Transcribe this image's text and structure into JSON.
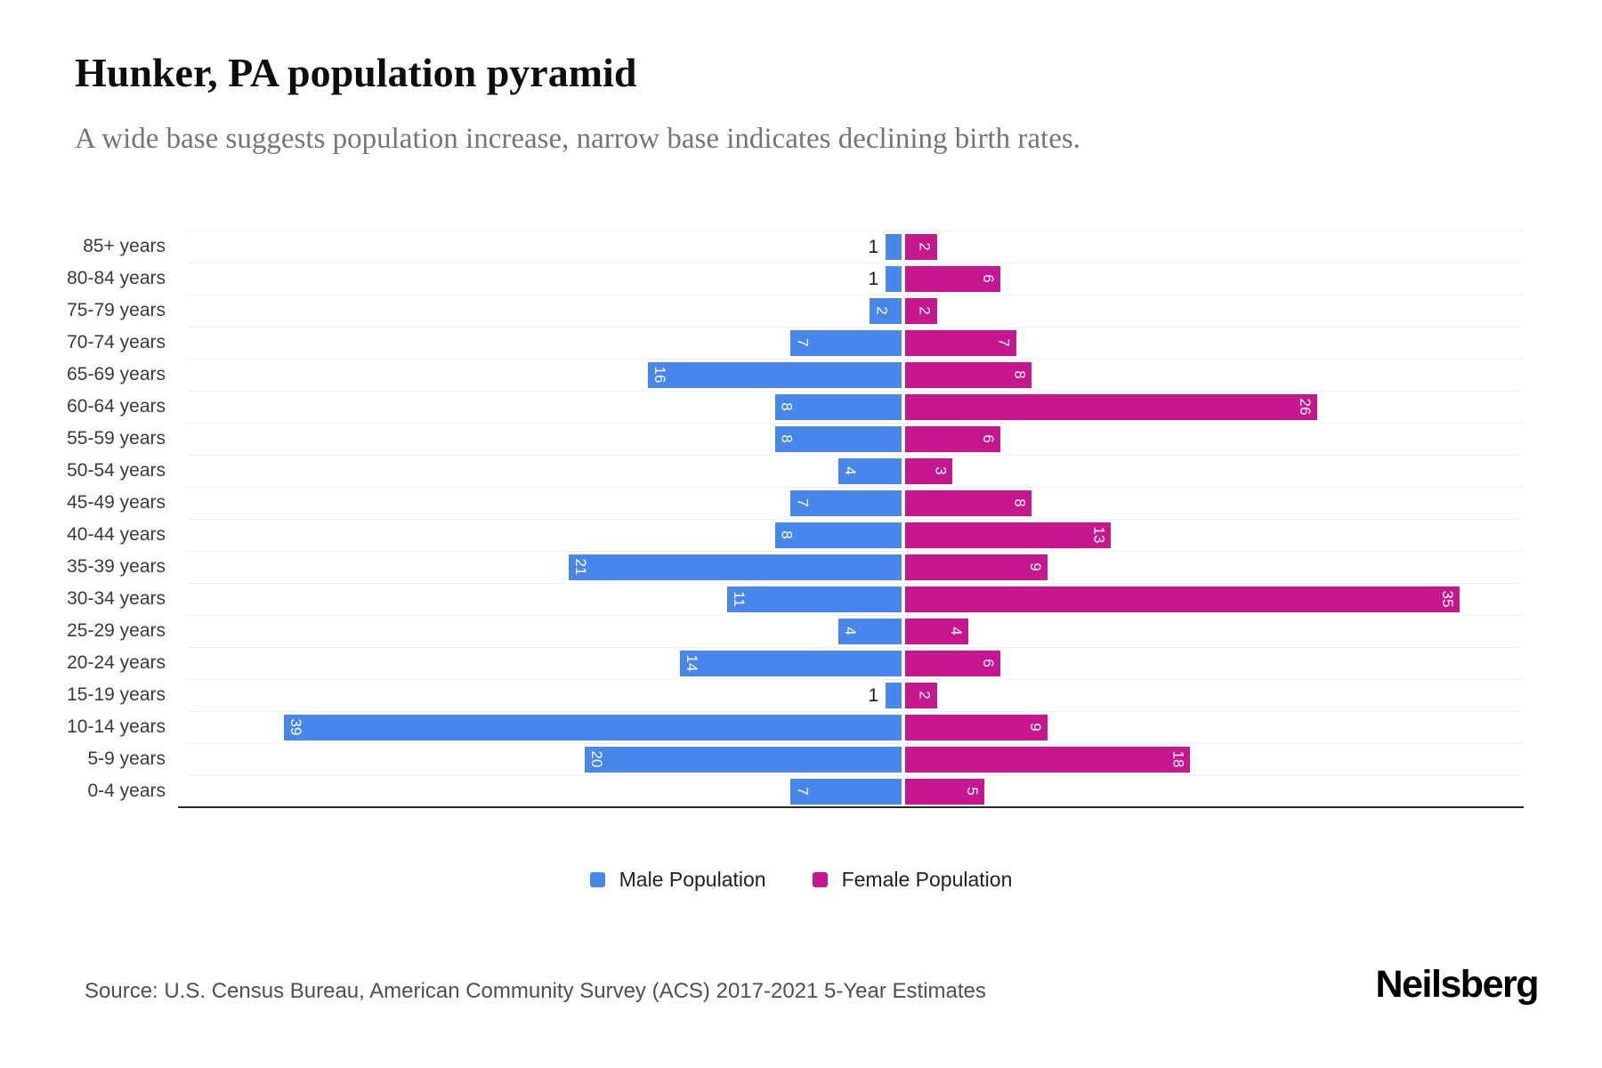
{
  "title": "Hunker, PA population pyramid",
  "subtitle": "A wide base suggests population increase, narrow base indicates declining birth rates.",
  "source": "Source: U.S. Census Bureau, American Community Survey (ACS) 2017-2021 5-Year Estimates",
  "brand": "Neilsberg",
  "legend": {
    "male_label": "Male Population",
    "female_label": "Female Population"
  },
  "colors": {
    "male": "#4787EB",
    "female": "#C7178E",
    "grid": "#EFEFEF",
    "axis": "#2B2B2B",
    "inside_value_label": "#FFFFFF",
    "outside_value_label": "#1C1C1C"
  },
  "chart_data": {
    "type": "bar",
    "variant": "population-pyramid",
    "orientation": "horizontal",
    "grid": true,
    "legend_position": "bottom",
    "x_axis_ticks_visible": false,
    "categories": [
      "85+ years",
      "80-84 years",
      "75-79 years",
      "70-74 years",
      "65-69 years",
      "60-64 years",
      "55-59 years",
      "50-54 years",
      "45-49 years",
      "40-44 years",
      "35-39 years",
      "30-34 years",
      "25-29 years",
      "20-24 years",
      "15-19 years",
      "10-14 years",
      "5-9 years",
      "0-4 years"
    ],
    "series": [
      {
        "name": "Male Population",
        "side": "left",
        "values": [
          1,
          1,
          2,
          7,
          16,
          8,
          8,
          4,
          7,
          8,
          21,
          11,
          4,
          14,
          1,
          39,
          20,
          7
        ]
      },
      {
        "name": "Female Population",
        "side": "right",
        "values": [
          2,
          6,
          2,
          7,
          8,
          26,
          6,
          3,
          8,
          13,
          9,
          35,
          4,
          6,
          2,
          9,
          18,
          5
        ]
      }
    ],
    "value_labels": "at bar outer end, rotated 90deg, white inside bar; black upright outside bar when bar too short"
  }
}
